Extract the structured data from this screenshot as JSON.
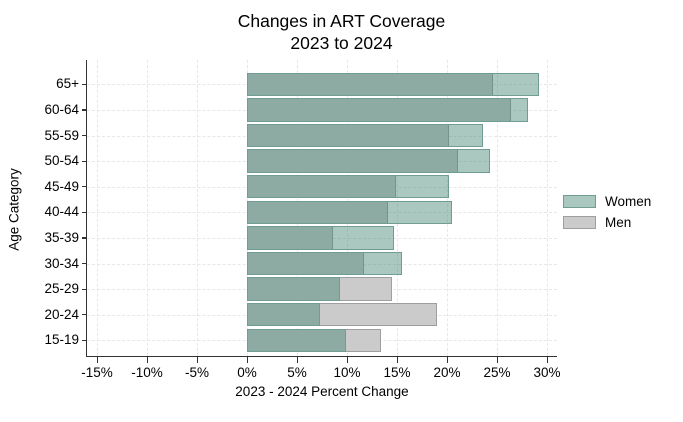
{
  "title": {
    "line1": "Changes in ART Coverage",
    "line2": "2023 to 2024"
  },
  "chart_data": {
    "type": "bar",
    "orientation": "horizontal",
    "title": "Changes in ART Coverage 2023 to 2024",
    "xlabel": "2023 - 2024 Percent Change",
    "ylabel": "Age Category",
    "categories": [
      "65+",
      "60-64",
      "55-59",
      "50-54",
      "45-49",
      "40-44",
      "35-39",
      "30-34",
      "25-29",
      "20-24",
      "15-19"
    ],
    "series": [
      {
        "name": "Women",
        "values": [
          29.2,
          28.1,
          23.6,
          24.3,
          20.2,
          20.5,
          14.7,
          15.5,
          9.3,
          7.3,
          9.9
        ]
      },
      {
        "name": "Men",
        "values": [
          24.6,
          26.4,
          20.2,
          21.1,
          14.9,
          14.1,
          8.6,
          11.7,
          14.5,
          19.0,
          13.4
        ]
      }
    ],
    "x_ticks": [
      "-15%",
      "-10%",
      "-5%",
      "0%",
      "5%",
      "10%",
      "15%",
      "20%",
      "25%",
      "30%"
    ],
    "x_tick_values": [
      -15,
      -10,
      -5,
      0,
      5,
      10,
      15,
      20,
      25,
      30
    ],
    "xlim": [
      -16,
      31
    ],
    "bars_overlap": true,
    "grid": true,
    "legend_position": "right-outside"
  },
  "legend": {
    "items": [
      {
        "label": "Women",
        "swatch_fill": "#aac7c0",
        "swatch_border": "#6f9c93"
      },
      {
        "label": "Men",
        "swatch_fill": "#cbcbcb",
        "swatch_border": "#9f9f9f"
      }
    ]
  },
  "colors": {
    "women_fill_translucent": "rgba(66,130,115,0.45)",
    "women_tail": "#aac7c0",
    "women_border": "#6f9c93",
    "men_fill": "#cbcbcb",
    "men_border": "#9f9f9f",
    "overlap": "#8f9e99",
    "grid": "#e7e7e7",
    "axis": "#333333",
    "text": "#000000"
  }
}
